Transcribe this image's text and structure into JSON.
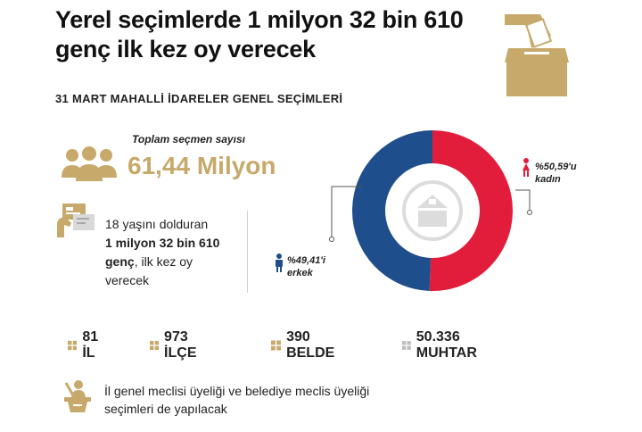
{
  "header": {
    "title_line1": "Yerel seçimlerde 1 milyon 32 bin 610",
    "title_line2": "genç ilk kez oy verecek",
    "subtitle": "31 MART MAHALLİ İDARELER GENEL SEÇİMLERİ"
  },
  "total": {
    "label": "Toplam seçmen sayısı",
    "value": "61,44 Milyon"
  },
  "first_time": {
    "line1": "18 yaşını dolduran",
    "bold": "1 milyon 32 bin 610 genç",
    "rest": ", ilk kez oy verecek"
  },
  "chart_data": {
    "type": "pie",
    "labels": [
      "kadın",
      "erkek"
    ],
    "values": [
      50.59,
      49.41
    ],
    "value_labels": [
      "%50,59'u",
      "%49,41'i"
    ],
    "colors": [
      "#e21d3b",
      "#1f4e8c"
    ],
    "donut": true
  },
  "stats": [
    {
      "label": "81 İL",
      "color": "#c7a96b"
    },
    {
      "label": "973 İLÇE",
      "color": "#c7a96b"
    },
    {
      "label": "390 BELDE",
      "color": "#c7a96b"
    },
    {
      "label": "50.336 MUHTAR",
      "color": "#bdbdbd"
    }
  ],
  "note": {
    "text": "İl genel meclisi üyeliği ve belediye meclis üyeliği seçimleri de yapılacak"
  },
  "colors": {
    "gold": "#c7a96b",
    "red": "#e21d3b",
    "blue": "#1f4e8c"
  }
}
